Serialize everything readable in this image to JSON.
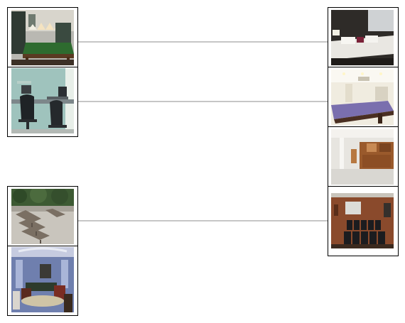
{
  "colors": {
    "frame": "#000000",
    "connector": "#8c8c8c",
    "background": "#ffffff"
  },
  "left_column": [
    {
      "id": "L1",
      "depicts": "billiard-room-icon"
    },
    {
      "id": "L2",
      "depicts": "office-room-icon"
    },
    {
      "id": "L3",
      "depicts": "patio-lounge-chairs-icon"
    },
    {
      "id": "L4",
      "depicts": "living-room-icon"
    }
  ],
  "right_column": [
    {
      "id": "R1",
      "depicts": "bedroom-icon"
    },
    {
      "id": "R2",
      "depicts": "pool-table-room-icon"
    },
    {
      "id": "R3",
      "depicts": "basement-bar-icon"
    },
    {
      "id": "R4",
      "depicts": "home-theater-icon"
    }
  ],
  "matches": [
    {
      "from": "L1",
      "to": "R1"
    },
    {
      "from": "L2",
      "to": "R2"
    },
    {
      "from": "L3",
      "to": "R4"
    }
  ]
}
